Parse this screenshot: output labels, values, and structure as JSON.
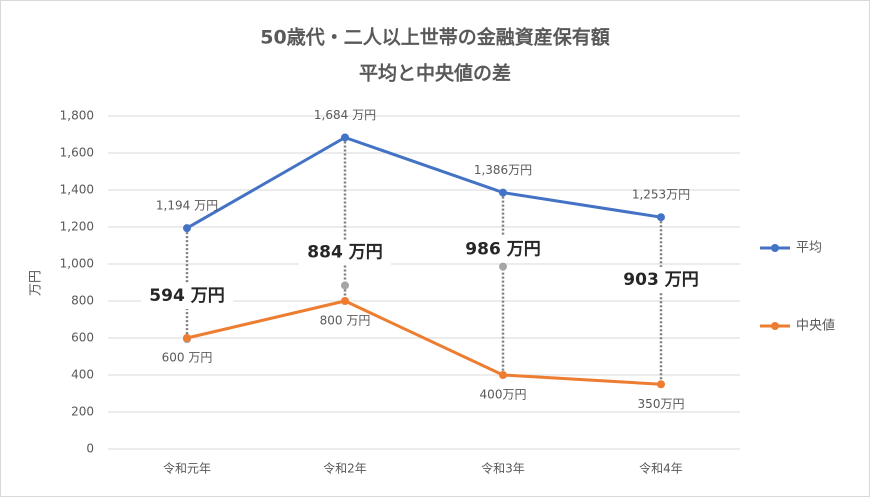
{
  "chart_data": {
    "type": "line",
    "title": "50歳代・二人以上世帯の金融資産保有額",
    "subtitle": "平均と中央値の差",
    "y_label": "万円",
    "categories": [
      "令和元年",
      "令和2年",
      "令和3年",
      "令和4年"
    ],
    "series": [
      {
        "name": "平均",
        "color": "#4472c4",
        "values": [
          1194,
          1684,
          1386,
          1253
        ],
        "value_labels": [
          "1,194 万円",
          "1,684 万円",
          "1,386万円",
          "1,253万円"
        ]
      },
      {
        "name": "中央値",
        "color": "#ed7d31",
        "values": [
          600,
          800,
          400,
          350
        ],
        "value_labels": [
          "600 万円",
          "800 万円",
          "400万円",
          "350万円"
        ]
      }
    ],
    "differences": {
      "color": "#a5a5a5",
      "values": [
        594,
        884,
        986,
        903
      ],
      "value_labels": [
        "594 万円",
        "884 万円",
        "986 万円",
        "903 万円"
      ]
    },
    "ylim": [
      0,
      1800
    ],
    "yticks": [
      0,
      200,
      400,
      600,
      800,
      {
        "value": 1000,
        "label": "1,000"
      },
      {
        "value": 1200,
        "label": "1,200"
      },
      {
        "value": 1400,
        "label": "1,400"
      },
      {
        "value": 1600,
        "label": "1,600"
      },
      {
        "value": 1800,
        "label": "1,800"
      }
    ],
    "grid": true,
    "legend": "right"
  }
}
